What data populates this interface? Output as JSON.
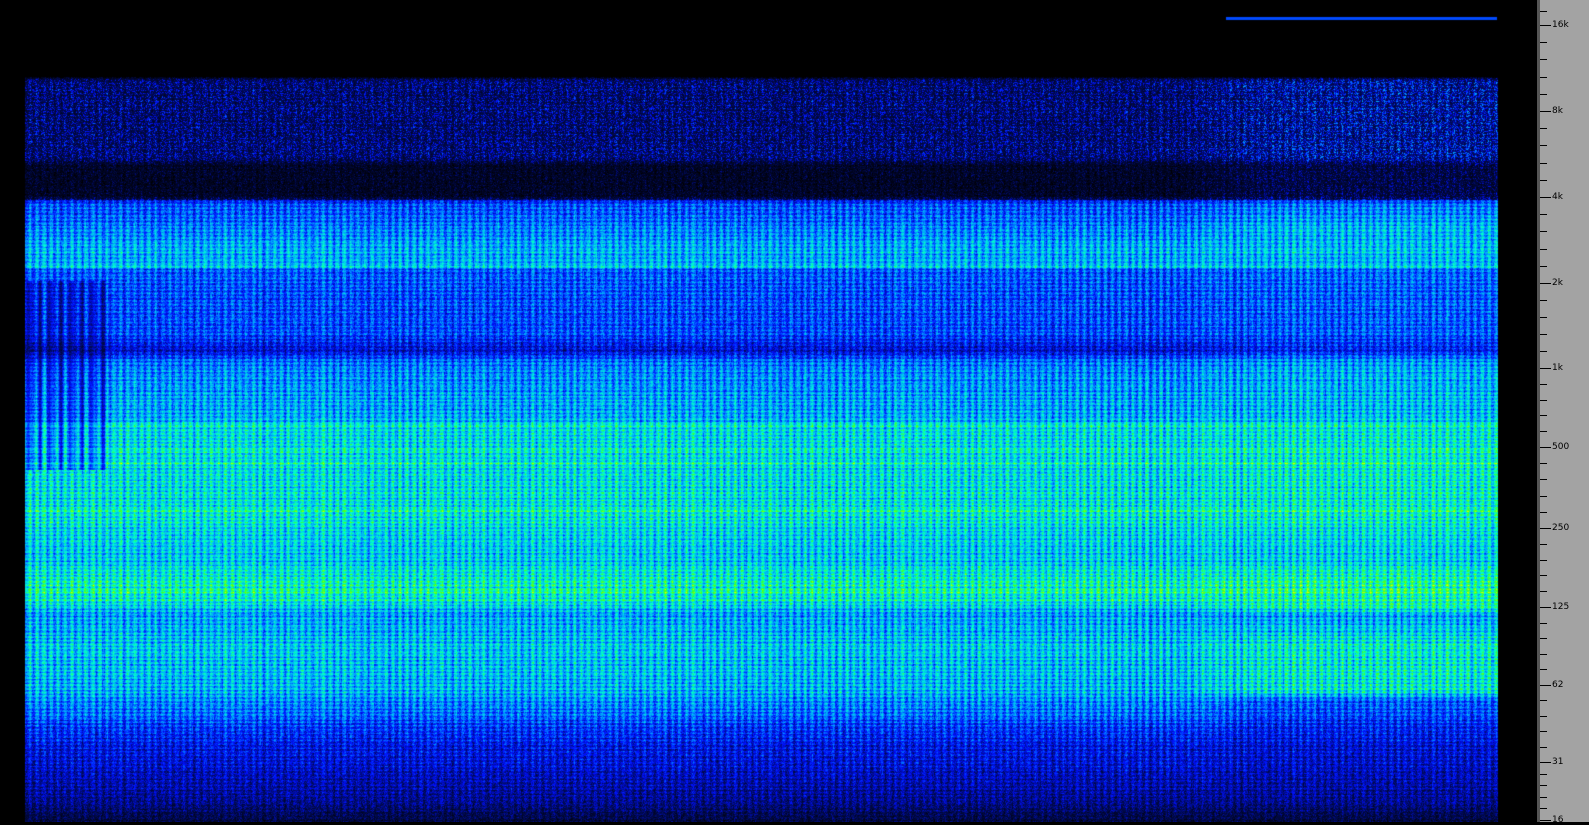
{
  "chart_data": {
    "type": "heatmap",
    "kind": "spectrogram",
    "title": "",
    "xlabel": "",
    "ylabel": "",
    "yscale": "log",
    "ylim": [
      16,
      20000
    ],
    "y_ticks": [
      "16k",
      "8k",
      "4k",
      "2k",
      "1k",
      "500",
      "250",
      "125",
      "62",
      "31",
      "16"
    ],
    "y_tick_values": [
      16000,
      8000,
      4000,
      2000,
      1000,
      500,
      250,
      125,
      62,
      31,
      16
    ],
    "axis_position": "right",
    "colormap": [
      "#000000",
      "#000a50",
      "#0010ff",
      "#00a0ff",
      "#00ffd0",
      "#40ff20",
      "#d0ff00",
      "#ffff00",
      "#ff4000"
    ],
    "colors": {
      "axis_background": "#a3a3a3",
      "background": "#000000"
    }
  }
}
